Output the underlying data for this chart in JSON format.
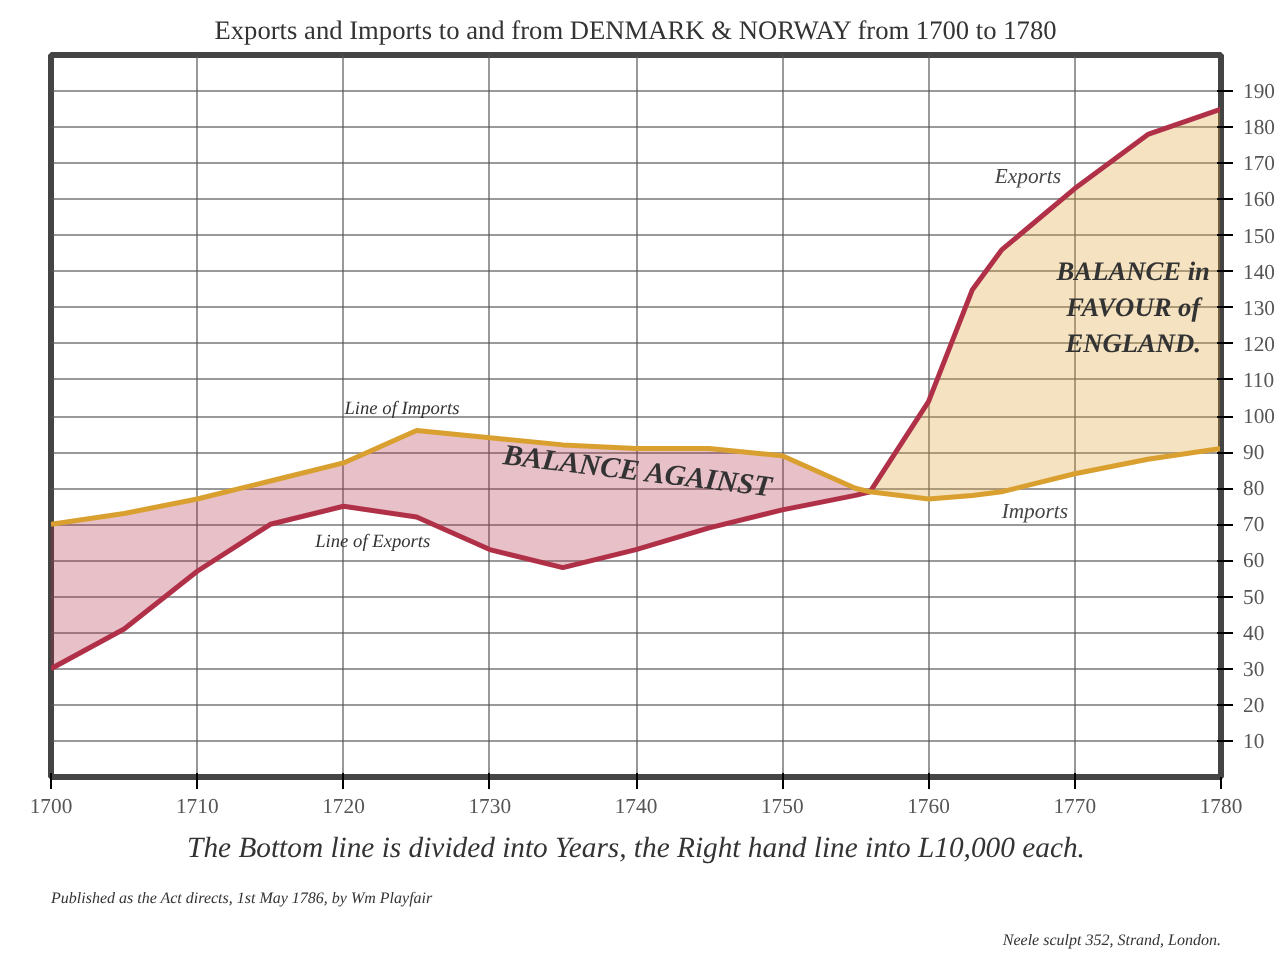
{
  "chart_data": {
    "type": "line",
    "title": "Exports and Imports to and from DENMARK & NORWAY from 1700 to 1780",
    "x": [
      1700,
      1705,
      1710,
      1715,
      1720,
      1725,
      1730,
      1735,
      1740,
      1745,
      1750,
      1755,
      1756,
      1760,
      1763,
      1765,
      1770,
      1775,
      1780
    ],
    "series": [
      {
        "name": "Exports",
        "color": "#b03048",
        "values": [
          30,
          41,
          57,
          70,
          75,
          72,
          63,
          58,
          63,
          69,
          74,
          78,
          79,
          104,
          135,
          146,
          163,
          178,
          185
        ],
        "lower": [
          30,
          41,
          57,
          70,
          75,
          72,
          63,
          58,
          63,
          69,
          74,
          78,
          79,
          null,
          null,
          null,
          null,
          null,
          null
        ],
        "upper": [
          70,
          73,
          77,
          82,
          87,
          96,
          94,
          92,
          91,
          91,
          89,
          80,
          79,
          null,
          null,
          null,
          null,
          null,
          null
        ]
      },
      {
        "name": "Imports",
        "color": "#d9a030",
        "values": [
          70,
          73,
          77,
          82,
          87,
          96,
          94,
          92,
          91,
          91,
          89,
          80,
          79,
          77,
          78,
          79,
          84,
          88,
          91
        ],
        "lower": [
          null,
          null,
          null,
          null,
          null,
          null,
          null,
          null,
          null,
          null,
          null,
          null,
          79,
          77,
          78,
          79,
          84,
          88,
          91
        ],
        "upper": [
          null,
          null,
          null,
          null,
          null,
          null,
          null,
          null,
          null,
          null,
          null,
          null,
          79,
          104,
          135,
          146,
          163,
          178,
          185
        ]
      }
    ],
    "xlim": [
      1700,
      1780
    ],
    "ylim": [
      0,
      200
    ],
    "xticks": [
      1700,
      1710,
      1720,
      1730,
      1740,
      1750,
      1760,
      1770,
      1780
    ],
    "yticks": [
      10,
      20,
      30,
      40,
      50,
      60,
      70,
      80,
      90,
      100,
      110,
      120,
      130,
      140,
      150,
      160,
      170,
      180,
      190
    ],
    "grid": true,
    "legend": false,
    "marker": "none",
    "line_style": "solid",
    "annotations": [
      "Line of Imports",
      "Line of Exports",
      "BALANCE AGAINST",
      "BALANCE in FAVOUR of ENGLAND.",
      "The Bottom line is divided into Years, the Right hand line into L10,000 each.",
      "Published as the Act directs, 1st May 1786, by Wm Playfair",
      "Neele sculpt 352, Strand, London."
    ]
  }
}
